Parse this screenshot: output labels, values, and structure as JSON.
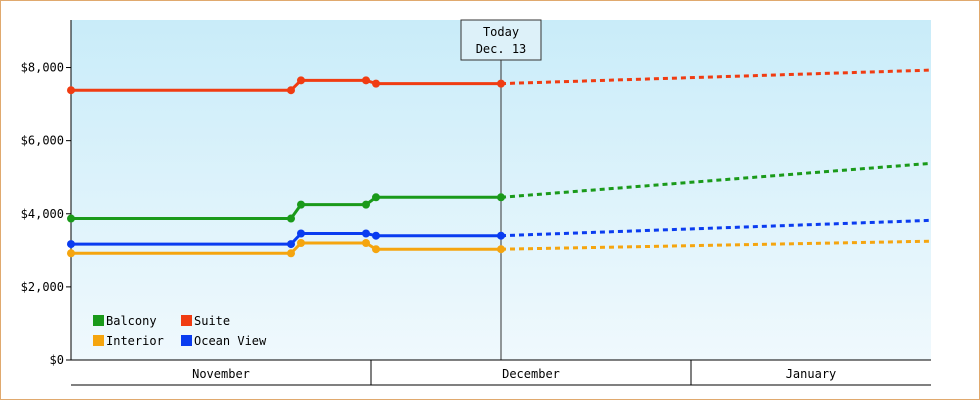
{
  "chart_data": {
    "type": "line",
    "y_ticks": [
      {
        "value": 0,
        "label": "$0"
      },
      {
        "value": 2000,
        "label": "$2,000"
      },
      {
        "value": 4000,
        "label": "$4,000"
      },
      {
        "value": 6000,
        "label": "$6,000"
      },
      {
        "value": 8000,
        "label": "$8,000"
      }
    ],
    "ylim": [
      0,
      9300
    ],
    "xlim": [
      0,
      86
    ],
    "today": {
      "x": 43,
      "line1": "Today",
      "line2": "Dec. 13"
    },
    "months": [
      {
        "label": "November",
        "start": 0,
        "end": 30
      },
      {
        "label": "December",
        "start": 30,
        "end": 62
      },
      {
        "label": "January",
        "start": 62,
        "end": 86
      }
    ],
    "series": [
      {
        "name": "Suite",
        "color": "#f03c12",
        "points": [
          [
            0,
            7380
          ],
          [
            22,
            7380
          ],
          [
            23,
            7650
          ],
          [
            29.5,
            7650
          ],
          [
            30.5,
            7560
          ],
          [
            43,
            7560
          ]
        ],
        "forecast": [
          [
            43,
            7560
          ],
          [
            86,
            7930
          ]
        ]
      },
      {
        "name": "Balcony",
        "color": "#1a9a1a",
        "points": [
          [
            0,
            3870
          ],
          [
            22,
            3870
          ],
          [
            23,
            4250
          ],
          [
            29.5,
            4250
          ],
          [
            30.5,
            4450
          ],
          [
            43,
            4450
          ]
        ],
        "forecast": [
          [
            43,
            4450
          ],
          [
            86,
            5380
          ]
        ]
      },
      {
        "name": "Ocean View",
        "color": "#0a3cf0",
        "points": [
          [
            0,
            3170
          ],
          [
            22,
            3170
          ],
          [
            23,
            3460
          ],
          [
            29.5,
            3460
          ],
          [
            30.5,
            3400
          ],
          [
            43,
            3400
          ]
        ],
        "forecast": [
          [
            43,
            3400
          ],
          [
            86,
            3820
          ]
        ]
      },
      {
        "name": "Interior",
        "color": "#f5a50f",
        "points": [
          [
            0,
            2920
          ],
          [
            22,
            2920
          ],
          [
            23,
            3200
          ],
          [
            29.5,
            3200
          ],
          [
            30.5,
            3030
          ],
          [
            43,
            3030
          ]
        ],
        "forecast": [
          [
            43,
            3030
          ],
          [
            86,
            3250
          ]
        ]
      }
    ],
    "legend": [
      {
        "name": "Balcony",
        "color": "#1a9a1a"
      },
      {
        "name": "Suite",
        "color": "#f03c12"
      },
      {
        "name": "Interior",
        "color": "#f5a50f"
      },
      {
        "name": "Ocean View",
        "color": "#0a3cf0"
      }
    ],
    "legend_position": "bottom-left",
    "grid": false
  }
}
